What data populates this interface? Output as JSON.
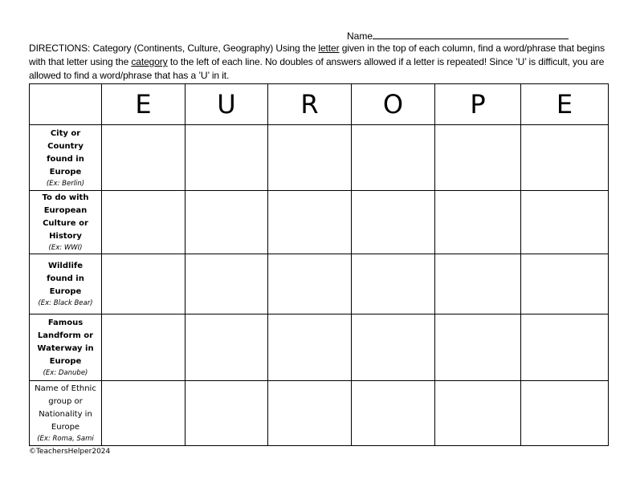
{
  "name_label": "Name",
  "directions": {
    "p1": "DIRECTIONS: Category (Continents, Culture, Geography) Using the ",
    "u1": "letter",
    "p2": " given in the top of each column, find a word/phrase that begins with that letter using the ",
    "u2": "category",
    "p3": " to the left of each line. No doubles of answers allowed if a letter is repeated! Since ’U’ is difficult, you are allowed to find a word/phrase that has a ’U’ in it."
  },
  "letters": [
    "E",
    "U",
    "R",
    "O",
    "P",
    "E"
  ],
  "categories": [
    {
      "label": "City or Country found in Europe",
      "example": "(Ex: Berlin)"
    },
    {
      "label": "To do with European Culture or History",
      "example": "(Ex: WWI)"
    },
    {
      "label": "Wildlife found in Europe",
      "example": "(Ex: Black Bear)"
    },
    {
      "label": "Famous Landform or Waterway in Europe",
      "example": "(Ex: Danube)"
    },
    {
      "label": "Name of Ethnic group or Nationality in Europe",
      "example": "(Ex: Roma, Sami"
    }
  ],
  "copyright": "©TeachersHelper2024"
}
